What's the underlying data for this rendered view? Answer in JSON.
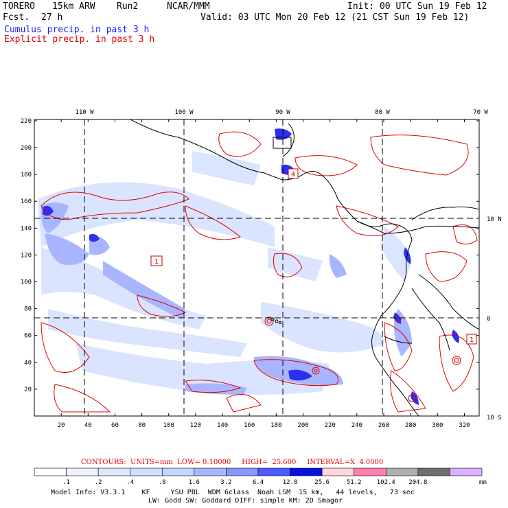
{
  "header": {
    "model": "TORERO",
    "resolution": "15km ARW",
    "run": "Run2",
    "org": "NCAR/MMM",
    "fcst_label": "Fcst.",
    "fcst_value": "27 h",
    "init": "Init: 00 UTC Sun 19 Feb 12",
    "valid": "Valid: 03 UTC Mon 20 Feb 12 (21 CST Sun 19 Feb 12)"
  },
  "legend": {
    "cumulus": "Cumulus precip. in past 3 h",
    "explicit": "Explicit precip. in past 3 h"
  },
  "map": {
    "lon_labels": [
      "110 W",
      "100 W",
      "90 W",
      "80 W",
      "70 W"
    ],
    "lat_labels": [
      "10 N",
      "0",
      "10 S"
    ],
    "y_ticks": [
      "220",
      "200",
      "180",
      "160",
      "140",
      "120",
      "100",
      "80",
      "60",
      "40",
      "20"
    ],
    "x_ticks": [
      "20",
      "40",
      "60",
      "80",
      "100",
      "120",
      "140",
      "160",
      "180",
      "200",
      "220",
      "240",
      "260",
      "280",
      "300",
      "320"
    ],
    "box_labels": [
      "1",
      "4",
      "1"
    ]
  },
  "contours": {
    "text": "CONTOURS:  UNITS=mm  LOW= 0.10000     HIGH=  25.600     INTERVAL=X  4.0000"
  },
  "colorbar": {
    "labels": [
      ".1",
      ".2",
      ".4",
      ".8",
      "1.6",
      "3.2",
      "6.4",
      "12.8",
      "25.6",
      "51.2",
      "102.4",
      "204.8"
    ],
    "units": "mm",
    "colors": [
      "#ffffff",
      "#eef3ff",
      "#dde8ff",
      "#cfe0ff",
      "#c2d6ff",
      "#a8b6ff",
      "#8a96ff",
      "#4d5aff",
      "#0a10e0",
      "#ffd6de",
      "#ff80b0",
      "#b0b0b0",
      "#707070",
      "#d9b0ff"
    ]
  },
  "footer": {
    "line1": "Model Info: V3.3.1    KF     YSU PBL  WDM 6class  Noah LSM  15 km,   44 levels,   73 sec",
    "line2": "LW: Godd SW: Goddard DIFF: simple KM: 2D Smagor"
  }
}
